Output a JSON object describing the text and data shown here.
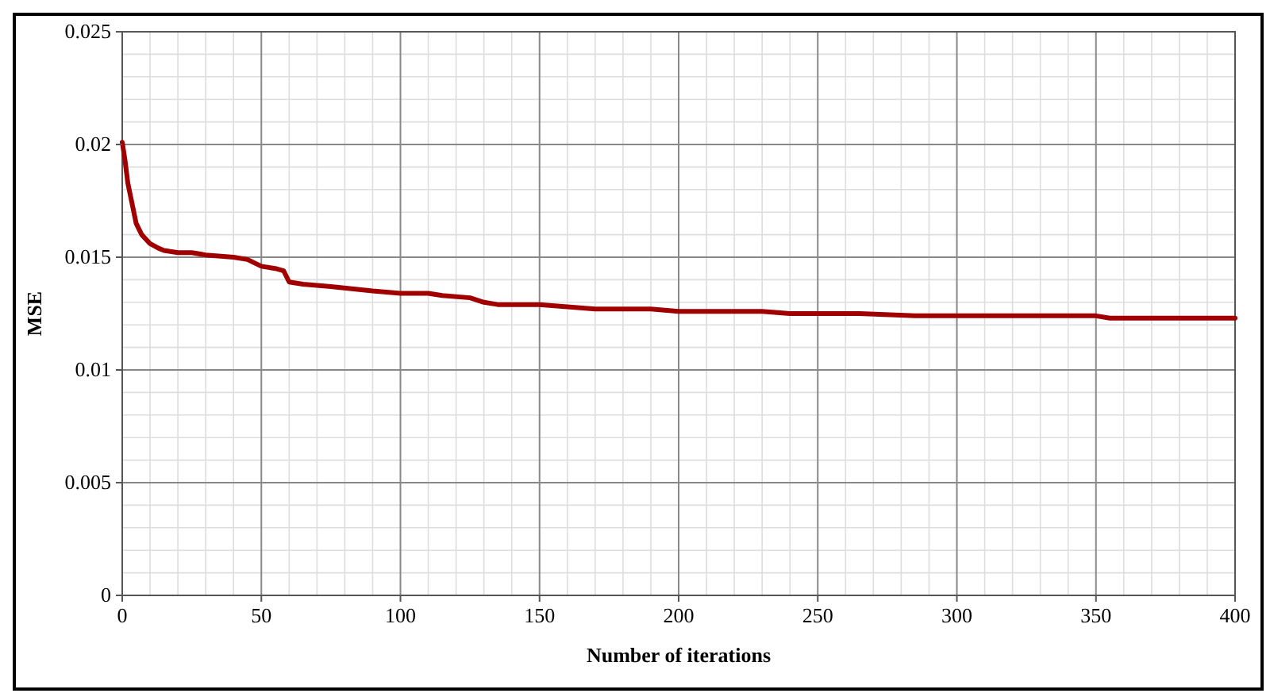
{
  "chart_data": {
    "type": "line",
    "xlabel": "Number of iterations",
    "ylabel": "MSE",
    "x": [
      0,
      1,
      2,
      3,
      5,
      7,
      10,
      13,
      15,
      20,
      25,
      30,
      40,
      45,
      50,
      55,
      58,
      60,
      65,
      75,
      90,
      100,
      110,
      115,
      125,
      130,
      135,
      150,
      160,
      170,
      190,
      200,
      230,
      240,
      265,
      285,
      300,
      350,
      355,
      400
    ],
    "series": [
      {
        "color": "#a00000",
        "values": [
          0.0201,
          0.0193,
          0.0183,
          0.0177,
          0.0165,
          0.016,
          0.0156,
          0.0154,
          0.0153,
          0.0152,
          0.0152,
          0.0151,
          0.015,
          0.0149,
          0.0146,
          0.0145,
          0.0144,
          0.0139,
          0.0138,
          0.0137,
          0.0135,
          0.0134,
          0.0134,
          0.0133,
          0.0132,
          0.013,
          0.0129,
          0.0129,
          0.0128,
          0.0127,
          0.0127,
          0.0126,
          0.0126,
          0.0125,
          0.0125,
          0.0124,
          0.0124,
          0.0124,
          0.0123,
          0.0123
        ]
      }
    ],
    "xlim": [
      0,
      400
    ],
    "ylim": [
      0,
      0.025
    ],
    "xticks": [
      0,
      50,
      100,
      150,
      200,
      250,
      300,
      350,
      400
    ],
    "yticks": [
      0,
      0.005,
      0.01,
      0.015,
      0.02,
      0.025
    ],
    "grid": true,
    "marker": "none",
    "line_style": "solid"
  }
}
